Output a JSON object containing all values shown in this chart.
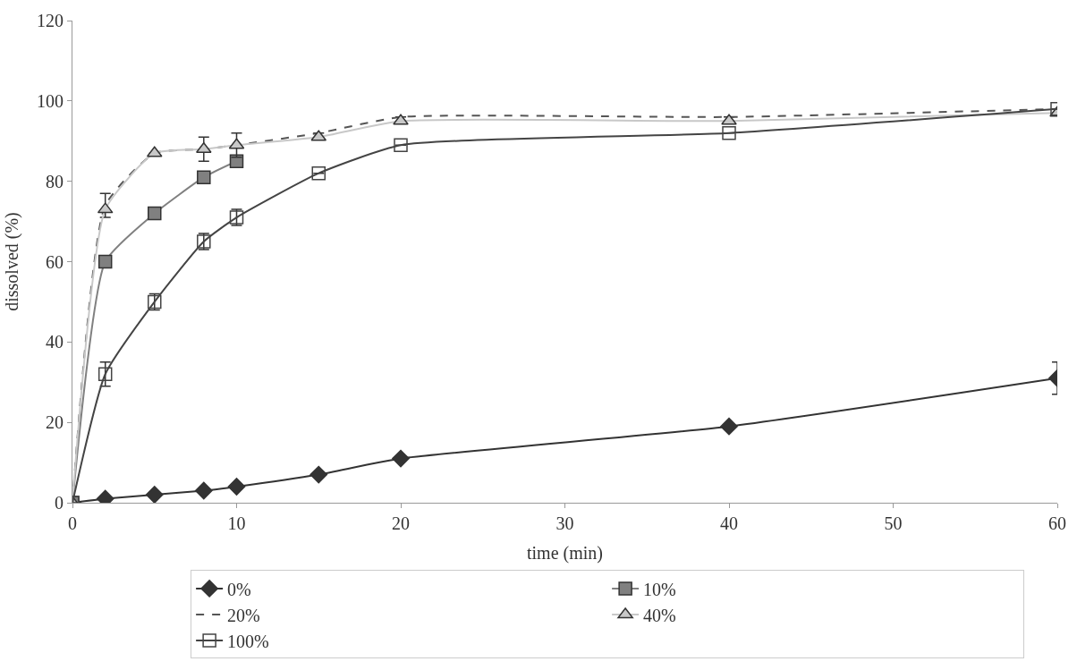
{
  "chart_data": {
    "type": "line",
    "xlabel": "time (min)",
    "ylabel": "dissolved (%)",
    "x": [
      0,
      2,
      5,
      8,
      10,
      15,
      20,
      40,
      60
    ],
    "xlim": [
      0,
      60
    ],
    "xticks": [
      0,
      10,
      20,
      30,
      40,
      50,
      60
    ],
    "ylim": [
      0,
      120
    ],
    "yticks": [
      0,
      20,
      40,
      60,
      80,
      100,
      120
    ],
    "legend": "bottom",
    "series": [
      {
        "name": "0%",
        "color": "#333333",
        "marker": "diamond",
        "line_style": "solid",
        "values": [
          0,
          1,
          2,
          3,
          4,
          7,
          11,
          19,
          31
        ],
        "errors": [
          null,
          null,
          null,
          null,
          null,
          null,
          null,
          null,
          4
        ]
      },
      {
        "name": "10%",
        "color": "#808080",
        "marker": "square",
        "line_style": "solid",
        "values": [
          0,
          60,
          72,
          81,
          85,
          null,
          null,
          null,
          null
        ]
      },
      {
        "name": "20%",
        "color": "#555555",
        "marker": "none",
        "line_style": "dashed",
        "values": [
          0,
          74,
          87,
          88,
          89,
          92,
          96,
          96,
          98
        ],
        "errors": [
          null,
          3,
          null,
          3,
          3,
          null,
          null,
          null,
          null
        ]
      },
      {
        "name": "40%",
        "color": "#c8c8c8",
        "marker": "triangle",
        "line_style": "solid",
        "values": [
          0,
          73,
          87,
          88,
          89,
          91,
          95,
          95,
          97
        ]
      },
      {
        "name": "100%",
        "color": "#444444",
        "marker": "square-open",
        "line_style": "solid",
        "values": [
          0,
          32,
          50,
          65,
          71,
          82,
          89,
          92,
          98
        ],
        "errors": [
          null,
          3,
          2,
          2,
          2,
          null,
          null,
          null,
          null
        ]
      }
    ]
  }
}
